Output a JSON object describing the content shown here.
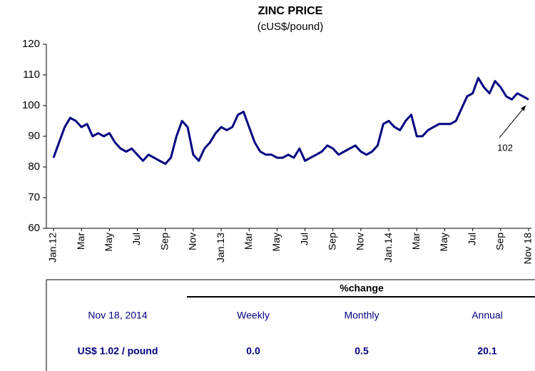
{
  "chart_data": {
    "type": "line",
    "title": "ZINC PRICE",
    "subtitle": "(cUS$/pound)",
    "categories": [
      "Jan.12",
      null,
      null,
      null,
      null,
      "Mar",
      null,
      null,
      null,
      null,
      "May",
      null,
      null,
      null,
      null,
      "Jul",
      null,
      null,
      null,
      null,
      "Sep",
      null,
      null,
      null,
      null,
      "Nov",
      null,
      null,
      null,
      null,
      "Jan.13",
      null,
      null,
      null,
      null,
      "Mar",
      null,
      null,
      null,
      null,
      "May",
      null,
      null,
      null,
      null,
      "Jul",
      null,
      null,
      null,
      null,
      "Sep",
      null,
      null,
      null,
      null,
      "Nov",
      null,
      null,
      null,
      null,
      "Jan.14",
      null,
      null,
      null,
      null,
      "Mar",
      null,
      null,
      null,
      null,
      "May",
      null,
      null,
      null,
      null,
      "Jul",
      null,
      null,
      null,
      null,
      "Sep",
      null,
      null,
      null,
      null,
      "Nov 18"
    ],
    "series": [
      {
        "color": "#000080",
        "values": [
          83,
          88,
          93,
          96,
          95,
          93,
          94,
          90,
          91,
          90,
          91,
          88,
          86,
          85,
          86,
          84,
          82,
          84,
          83,
          82,
          81,
          83,
          90,
          95,
          93,
          84,
          82,
          86,
          88,
          91,
          93,
          92,
          93,
          97,
          98,
          93,
          88,
          85,
          84,
          84,
          83,
          83,
          84,
          83,
          86,
          82,
          83,
          84,
          85,
          87,
          86,
          84,
          85,
          86,
          87,
          85,
          84,
          85,
          87,
          94,
          95,
          93,
          92,
          95,
          97,
          90,
          90,
          92,
          93,
          94,
          94,
          94,
          95,
          99,
          103,
          104,
          109,
          106,
          104,
          108,
          106,
          103,
          102,
          104,
          103,
          102
        ]
      }
    ],
    "ylim": [
      60,
      120
    ],
    "yticks": [
      60,
      70,
      80,
      90,
      100,
      110,
      120
    ],
    "annotation": "102"
  },
  "table": {
    "header": "%change",
    "columns": [
      "Nov 18, 2014",
      "Weekly",
      "Monthly",
      "Annual"
    ],
    "values": [
      "US$ 1.02 / pound",
      "0.0",
      "0.5",
      "20.1"
    ]
  }
}
